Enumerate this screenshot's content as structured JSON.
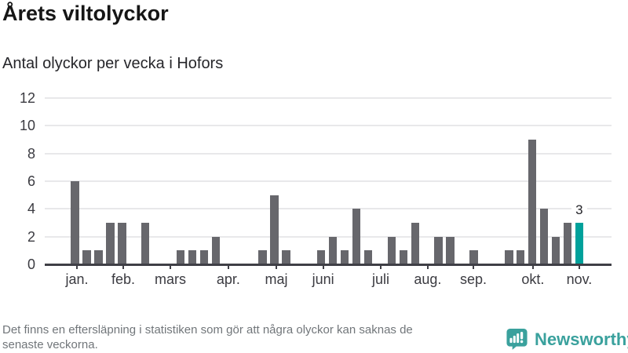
{
  "title": "Årets viltolyckor",
  "subtitle": "Antal olyckor per vecka i Hofors",
  "chart_data": {
    "type": "bar",
    "title": "Årets viltolyckor",
    "subtitle": "Antal olyckor per vecka i Hofors",
    "xlabel": "",
    "ylabel": "",
    "x_unit": "vecka",
    "values": [
      6,
      1,
      1,
      3,
      3,
      0,
      3,
      0,
      0,
      1,
      1,
      1,
      2,
      0,
      0,
      0,
      1,
      5,
      1,
      0,
      0,
      1,
      2,
      1,
      4,
      1,
      0,
      2,
      1,
      3,
      0,
      2,
      2,
      0,
      1,
      0,
      0,
      1,
      1,
      9,
      4,
      2,
      3,
      3
    ],
    "highlight_last": true,
    "last_value_label": "3",
    "yticks": [
      0,
      2,
      4,
      6,
      8,
      10,
      12
    ],
    "ylim": [
      0,
      12
    ],
    "grid": "horizontal",
    "months": [
      {
        "label": "jan.",
        "week": 1.17
      },
      {
        "label": "feb.",
        "week": 5.12
      },
      {
        "label": "mars",
        "week": 9.13
      },
      {
        "label": "apr.",
        "week": 14.08
      },
      {
        "label": "maj",
        "week": 18.17
      },
      {
        "label": "juni",
        "week": 22.16
      },
      {
        "label": "juli",
        "week": 27.07
      },
      {
        "label": "aug.",
        "week": 31.08
      },
      {
        "label": "sep.",
        "week": 34.97
      },
      {
        "label": "okt.",
        "week": 40.05
      },
      {
        "label": "nov.",
        "week": 44.0
      }
    ],
    "colors": {
      "bar": "#67676c",
      "highlight": "#00a19b",
      "gridline": "#e8e8ea",
      "axis": "#3f3f46",
      "axis_text": "#3b3b41",
      "data_label_text": "#26262b"
    }
  },
  "footer": {
    "note": "Det finns en eftersläpning i statistiken som gör att några olyckor kan saknas de\nsenaste veckorna."
  },
  "branding": {
    "name": "Newsworthy",
    "logo_color": "#3aa19d",
    "logo_icon": "newsworthy-speech-bubble-bar-chart-icon"
  }
}
